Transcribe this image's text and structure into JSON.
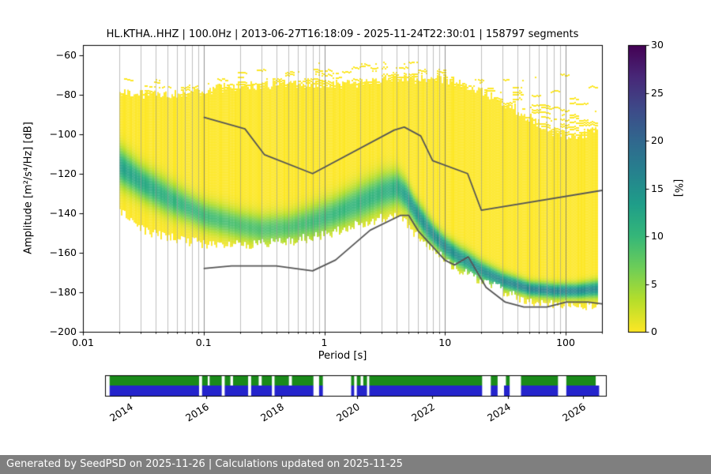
{
  "chart_data": {
    "type": "heatmap",
    "title": "HL.KTHA..HHZ | 100.0Hz | 2013-06-27T16:18:09 - 2025-11-24T22:30:01 | 158797 segments",
    "xlabel": "Period [s]",
    "ylabel": "Amplitude [m²/s⁴/Hz] [dB]",
    "x_scale": "log",
    "xlim": [
      0.01,
      200
    ],
    "ylim": [
      -200,
      -55
    ],
    "x_tick_values": [
      0.01,
      0.1,
      1,
      10,
      100
    ],
    "x_tick_labels": [
      "0.01",
      "0.1",
      "1",
      "10",
      "100"
    ],
    "y_tick_values": [
      -60,
      -80,
      -100,
      -120,
      -140,
      -160,
      -180,
      -200
    ],
    "y_tick_labels": [
      "−60",
      "−80",
      "−100",
      "−120",
      "−140",
      "−160",
      "−180",
      "−200"
    ],
    "grid": "vertical log major+minor",
    "colorbar": {
      "label": "[%]",
      "min": 0,
      "max": 30,
      "tick_values": [
        0,
        5,
        10,
        15,
        20,
        25,
        30
      ],
      "tick_labels": [
        "0",
        "5",
        "10",
        "15",
        "20",
        "25",
        "30"
      ],
      "colors_top_to_bottom": [
        "#440154",
        "#482878",
        "#3e4a89",
        "#31688e",
        "#26828e",
        "#1f9e89",
        "#35b779",
        "#6ece58",
        "#b5de2b",
        "#fde725"
      ]
    },
    "histogram": {
      "period_range": [
        0.02,
        179
      ],
      "envelope": {
        "periods": [
          0.02,
          0.03,
          0.05,
          0.08,
          0.1,
          0.2,
          0.3,
          0.5,
          0.8,
          1.2,
          2,
          3,
          4,
          5,
          6,
          8,
          10,
          15,
          20,
          30,
          50,
          80,
          120,
          179
        ],
        "top_db": [
          -78,
          -80,
          -80,
          -79,
          -78,
          -76,
          -75,
          -75,
          -75,
          -75,
          -74,
          -73,
          -72,
          -72,
          -72,
          -72,
          -73,
          -75,
          -78,
          -84,
          -92,
          -99,
          -102,
          -98
        ],
        "streak_top_db": [
          -70,
          -72,
          -73,
          -72,
          -71,
          -68,
          -64,
          -63,
          -63,
          -63,
          -63,
          -62,
          -62,
          -62,
          -63,
          -64,
          -66,
          -68,
          -70,
          -72,
          -74,
          -72,
          -65,
          -63
        ],
        "bottom_db": [
          -138,
          -148,
          -152,
          -154,
          -155,
          -156,
          -155,
          -154,
          -152,
          -149,
          -145,
          -142,
          -140,
          -146,
          -152,
          -158,
          -164,
          -170,
          -174,
          -179,
          -184,
          -186,
          -186,
          -186
        ]
      },
      "ridge": {
        "periods": [
          0.02,
          0.03,
          0.05,
          0.08,
          0.1,
          0.2,
          0.3,
          0.5,
          0.8,
          1.2,
          2,
          3,
          4,
          4.7,
          5.5,
          7,
          8,
          10,
          13,
          15,
          20,
          30,
          50,
          80,
          120,
          179
        ],
        "mode_db": [
          -116,
          -124,
          -132,
          -138,
          -141,
          -146,
          -148,
          -147,
          -144,
          -140,
          -134,
          -129,
          -127,
          -131,
          -138,
          -147,
          -151,
          -157,
          -162,
          -164,
          -169,
          -174,
          -178,
          -179,
          -179,
          -178
        ],
        "halfwidth_db": [
          9,
          8,
          8,
          7,
          7,
          7,
          7,
          7,
          8,
          8,
          9,
          9,
          8,
          7,
          6,
          6,
          5,
          5,
          5,
          5,
          4.5,
          4,
          3.5,
          3.5,
          3.5,
          4
        ],
        "strength": [
          0.75,
          0.7,
          0.62,
          0.58,
          0.55,
          0.5,
          0.5,
          0.5,
          0.55,
          0.58,
          0.6,
          0.62,
          0.68,
          0.78,
          0.85,
          0.88,
          0.9,
          0.9,
          0.88,
          0.86,
          0.88,
          0.92,
          0.95,
          0.95,
          0.93,
          0.9
        ]
      }
    },
    "noise_models": {
      "line_color": "#565656",
      "high": [
        [
          0.1,
          -91.5
        ],
        [
          0.22,
          -97.4
        ],
        [
          0.32,
          -110.5
        ],
        [
          0.8,
          -120.0
        ],
        [
          3.8,
          -98.0
        ],
        [
          4.6,
          -96.5
        ],
        [
          6.3,
          -101.0
        ],
        [
          7.9,
          -113.5
        ],
        [
          15.4,
          -120.0
        ],
        [
          20.0,
          -138.5
        ],
        [
          354.8,
          -126.0
        ]
      ],
      "low": [
        [
          0.1,
          -168.0
        ],
        [
          0.17,
          -166.7
        ],
        [
          0.4,
          -166.7
        ],
        [
          0.8,
          -169.2
        ],
        [
          1.24,
          -163.7
        ],
        [
          2.4,
          -148.6
        ],
        [
          4.3,
          -141.1
        ],
        [
          5.0,
          -141.1
        ],
        [
          6.0,
          -149.0
        ],
        [
          10.0,
          -163.8
        ],
        [
          12.0,
          -166.2
        ],
        [
          15.6,
          -162.1
        ],
        [
          21.9,
          -177.5
        ],
        [
          31.6,
          -185.0
        ],
        [
          45.0,
          -187.5
        ],
        [
          70.0,
          -187.5
        ],
        [
          101.0,
          -185.0
        ],
        [
          154.0,
          -185.0
        ],
        [
          328.0,
          -187.5
        ]
      ]
    },
    "availability": {
      "year_range": [
        2013.33,
        2026.6
      ],
      "tick_years": [
        2014,
        2016,
        2018,
        2020,
        2022,
        2024,
        2026
      ],
      "tick_labels": [
        "2014",
        "2016",
        "2018",
        "2020",
        "2022",
        "2024",
        "2026"
      ],
      "green_color": "#1a8a1a",
      "blue_color": "#2424cc",
      "green_segments": [
        [
          2013.45,
          2015.82
        ],
        [
          2015.9,
          2016.05
        ],
        [
          2016.1,
          2016.42
        ],
        [
          2016.5,
          2016.65
        ],
        [
          2016.72,
          2017.12
        ],
        [
          2017.2,
          2017.4
        ],
        [
          2017.48,
          2017.75
        ],
        [
          2017.82,
          2018.2
        ],
        [
          2018.28,
          2018.85
        ],
        [
          2019.0,
          2019.1
        ],
        [
          2019.85,
          2019.93
        ],
        [
          2020.0,
          2020.1
        ],
        [
          2020.17,
          2020.27
        ],
        [
          2020.33,
          2023.32
        ],
        [
          2023.55,
          2023.73
        ],
        [
          2023.95,
          2024.05
        ],
        [
          2024.35,
          2025.33
        ],
        [
          2025.55,
          2026.33
        ]
      ],
      "blue_segments": [
        [
          2013.45,
          2015.82
        ],
        [
          2015.9,
          2016.42
        ],
        [
          2016.5,
          2017.12
        ],
        [
          2017.2,
          2017.75
        ],
        [
          2017.82,
          2018.85
        ],
        [
          2019.0,
          2019.1
        ],
        [
          2019.85,
          2019.93
        ],
        [
          2020.0,
          2020.27
        ],
        [
          2020.33,
          2023.32
        ],
        [
          2023.55,
          2023.73
        ],
        [
          2023.9,
          2024.05
        ],
        [
          2024.35,
          2025.33
        ],
        [
          2025.55,
          2026.42
        ]
      ]
    }
  },
  "footer": {
    "text": "Generated by SeedPSD on 2025-11-26 | Calculations updated on 2025-11-25",
    "bg_color": "#7f7f7f",
    "text_color": "#ffffff"
  }
}
